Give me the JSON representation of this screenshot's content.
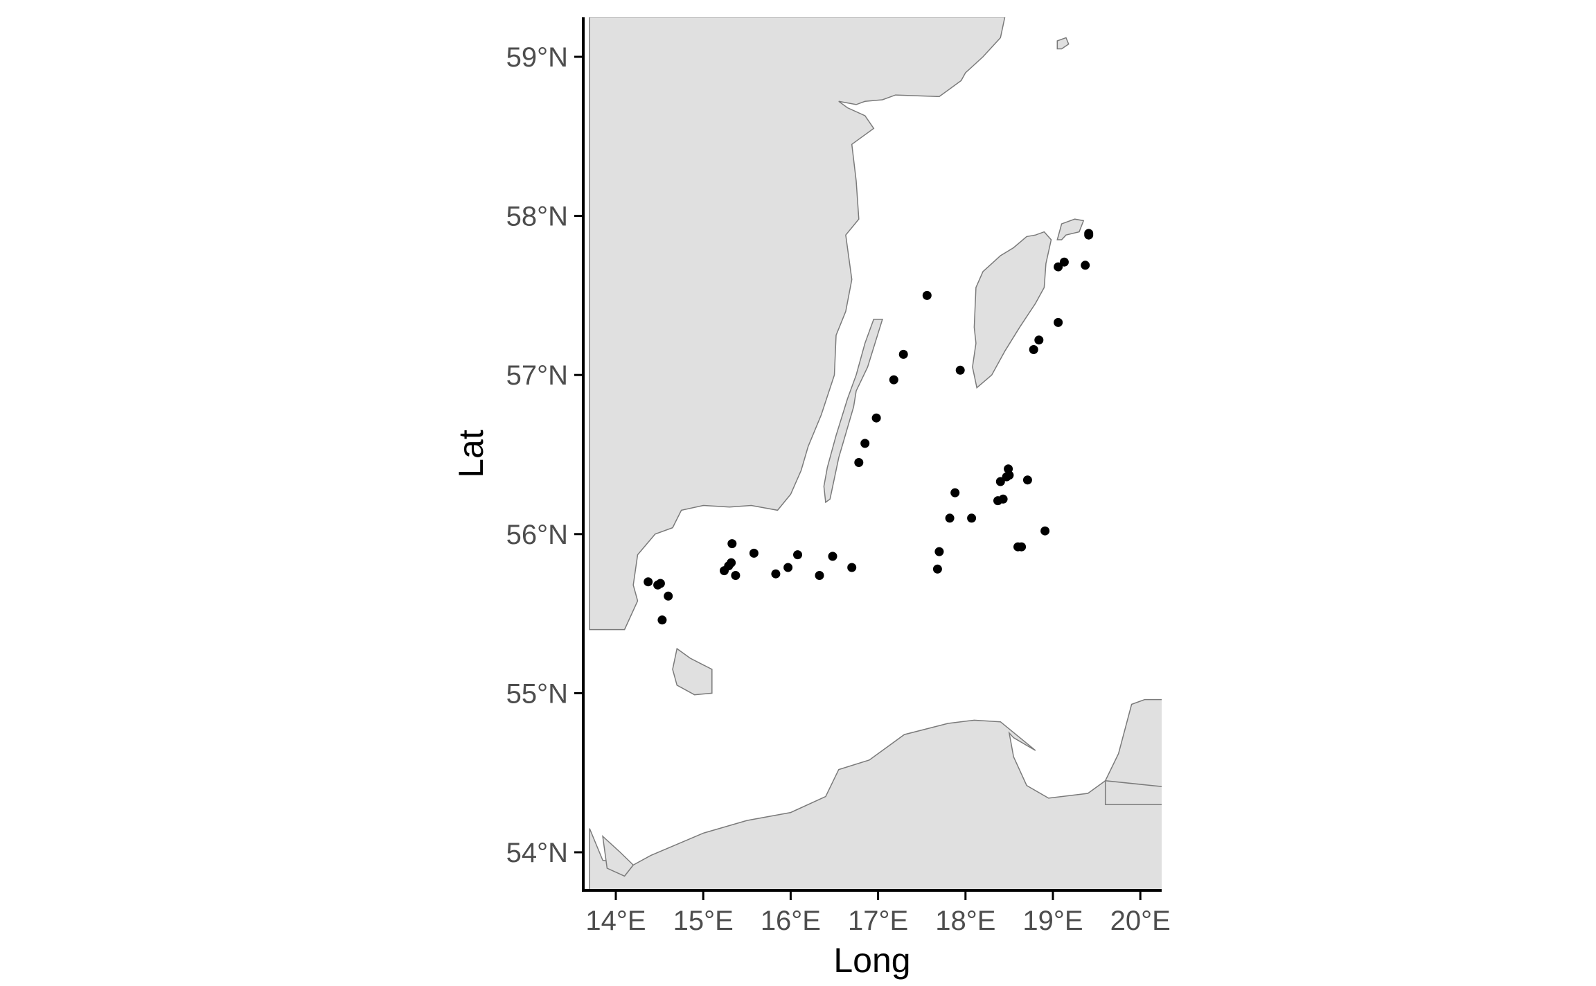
{
  "map": {
    "x_title": "Long",
    "y_title": "Lat",
    "x_ticks": [
      {
        "value": 14,
        "label": "14°E"
      },
      {
        "value": 15,
        "label": "15°E"
      },
      {
        "value": 16,
        "label": "16°E"
      },
      {
        "value": 17,
        "label": "17°E"
      },
      {
        "value": 18,
        "label": "18°E"
      },
      {
        "value": 19,
        "label": "19°E"
      },
      {
        "value": 20,
        "label": "20°E"
      }
    ],
    "y_ticks": [
      {
        "value": 54,
        "label": "54°N"
      },
      {
        "value": 55,
        "label": "55°N"
      },
      {
        "value": 56,
        "label": "56°N"
      },
      {
        "value": 57,
        "label": "57°N"
      },
      {
        "value": 58,
        "label": "58°N"
      },
      {
        "value": 59,
        "label": "59°N"
      }
    ],
    "xlim": [
      13.7,
      20.3
    ],
    "ylim": [
      53.75,
      59.25
    ],
    "colors": {
      "land_fill": "#e0e0e0",
      "land_stroke": "#7a7a7a",
      "points": "#000000",
      "axis": "#000000"
    },
    "points": [
      {
        "lon": 14.37,
        "lat": 55.7
      },
      {
        "lon": 14.48,
        "lat": 55.68
      },
      {
        "lon": 14.51,
        "lat": 55.69
      },
      {
        "lon": 14.6,
        "lat": 55.61
      },
      {
        "lon": 14.53,
        "lat": 55.46
      },
      {
        "lon": 15.24,
        "lat": 55.77
      },
      {
        "lon": 15.29,
        "lat": 55.8
      },
      {
        "lon": 15.32,
        "lat": 55.82
      },
      {
        "lon": 15.33,
        "lat": 55.94
      },
      {
        "lon": 15.37,
        "lat": 55.74
      },
      {
        "lon": 15.58,
        "lat": 55.88
      },
      {
        "lon": 15.83,
        "lat": 55.75
      },
      {
        "lon": 15.97,
        "lat": 55.79
      },
      {
        "lon": 16.08,
        "lat": 55.87
      },
      {
        "lon": 16.33,
        "lat": 55.74
      },
      {
        "lon": 16.48,
        "lat": 55.86
      },
      {
        "lon": 16.7,
        "lat": 55.79
      },
      {
        "lon": 16.78,
        "lat": 56.45
      },
      {
        "lon": 16.85,
        "lat": 56.57
      },
      {
        "lon": 16.98,
        "lat": 56.73
      },
      {
        "lon": 17.18,
        "lat": 56.97
      },
      {
        "lon": 17.29,
        "lat": 57.13
      },
      {
        "lon": 17.56,
        "lat": 57.5
      },
      {
        "lon": 17.68,
        "lat": 55.78
      },
      {
        "lon": 17.7,
        "lat": 55.89
      },
      {
        "lon": 17.82,
        "lat": 56.1
      },
      {
        "lon": 17.88,
        "lat": 56.26
      },
      {
        "lon": 17.94,
        "lat": 57.03
      },
      {
        "lon": 18.07,
        "lat": 56.1
      },
      {
        "lon": 18.37,
        "lat": 56.21
      },
      {
        "lon": 18.4,
        "lat": 56.33
      },
      {
        "lon": 18.43,
        "lat": 56.22
      },
      {
        "lon": 18.47,
        "lat": 56.36
      },
      {
        "lon": 18.49,
        "lat": 56.41
      },
      {
        "lon": 18.5,
        "lat": 56.37
      },
      {
        "lon": 18.6,
        "lat": 55.92
      },
      {
        "lon": 18.64,
        "lat": 55.92
      },
      {
        "lon": 18.71,
        "lat": 56.34
      },
      {
        "lon": 18.78,
        "lat": 57.16
      },
      {
        "lon": 18.84,
        "lat": 57.22
      },
      {
        "lon": 18.91,
        "lat": 56.02
      },
      {
        "lon": 19.06,
        "lat": 57.33
      },
      {
        "lon": 19.06,
        "lat": 57.68
      },
      {
        "lon": 19.13,
        "lat": 57.71
      },
      {
        "lon": 19.37,
        "lat": 57.69
      },
      {
        "lon": 19.41,
        "lat": 57.88
      },
      {
        "lon": 19.41,
        "lat": 57.89
      }
    ],
    "land": [
      {
        "name": "sweden-land",
        "coords": [
          [
            13.7,
            59.25
          ],
          [
            18.45,
            59.25
          ],
          [
            18.4,
            59.12
          ],
          [
            18.2,
            59.0
          ],
          [
            18.0,
            58.9
          ],
          [
            17.95,
            58.85
          ],
          [
            17.7,
            58.75
          ],
          [
            17.2,
            58.76
          ],
          [
            17.05,
            58.73
          ],
          [
            16.85,
            58.72
          ],
          [
            16.75,
            58.7
          ],
          [
            16.55,
            58.72
          ],
          [
            16.65,
            58.68
          ],
          [
            16.85,
            58.63
          ],
          [
            16.95,
            58.55
          ],
          [
            16.7,
            58.45
          ],
          [
            16.75,
            58.22
          ],
          [
            16.78,
            57.98
          ],
          [
            16.63,
            57.88
          ],
          [
            16.7,
            57.6
          ],
          [
            16.63,
            57.4
          ],
          [
            16.52,
            57.25
          ],
          [
            16.5,
            57.0
          ],
          [
            16.35,
            56.75
          ],
          [
            16.2,
            56.55
          ],
          [
            16.12,
            56.4
          ],
          [
            16.0,
            56.25
          ],
          [
            15.85,
            56.15
          ],
          [
            15.55,
            56.18
          ],
          [
            15.3,
            56.17
          ],
          [
            15.0,
            56.18
          ],
          [
            14.75,
            56.15
          ],
          [
            14.65,
            56.04
          ],
          [
            14.45,
            56.0
          ],
          [
            14.25,
            55.87
          ],
          [
            14.2,
            55.68
          ],
          [
            14.25,
            55.58
          ],
          [
            14.1,
            55.4
          ],
          [
            13.85,
            55.4
          ],
          [
            13.7,
            55.4
          ]
        ]
      },
      {
        "name": "oland-island",
        "coords": [
          [
            16.4,
            56.2
          ],
          [
            16.45,
            56.22
          ],
          [
            16.55,
            56.48
          ],
          [
            16.72,
            56.8
          ],
          [
            16.75,
            56.9
          ],
          [
            16.88,
            57.05
          ],
          [
            17.05,
            57.35
          ],
          [
            16.95,
            57.35
          ],
          [
            16.85,
            57.2
          ],
          [
            16.75,
            57.0
          ],
          [
            16.65,
            56.85
          ],
          [
            16.52,
            56.62
          ],
          [
            16.42,
            56.42
          ],
          [
            16.38,
            56.3
          ]
        ]
      },
      {
        "name": "gotland-island",
        "coords": [
          [
            18.13,
            56.92
          ],
          [
            18.3,
            57.0
          ],
          [
            18.45,
            57.15
          ],
          [
            18.62,
            57.3
          ],
          [
            18.8,
            57.45
          ],
          [
            18.9,
            57.55
          ],
          [
            18.92,
            57.7
          ],
          [
            18.98,
            57.85
          ],
          [
            18.9,
            57.9
          ],
          [
            18.8,
            57.88
          ],
          [
            18.7,
            57.87
          ],
          [
            18.55,
            57.8
          ],
          [
            18.4,
            57.75
          ],
          [
            18.2,
            57.65
          ],
          [
            18.12,
            57.55
          ],
          [
            18.1,
            57.3
          ],
          [
            18.12,
            57.2
          ],
          [
            18.08,
            57.05
          ]
        ]
      },
      {
        "name": "faro-island",
        "coords": [
          [
            19.05,
            57.85
          ],
          [
            19.1,
            57.95
          ],
          [
            19.25,
            57.98
          ],
          [
            19.35,
            57.97
          ],
          [
            19.3,
            57.9
          ],
          [
            19.15,
            57.88
          ],
          [
            19.1,
            57.85
          ]
        ]
      },
      {
        "name": "gotska-sandon-island",
        "coords": [
          [
            19.05,
            59.1
          ],
          [
            19.15,
            59.12
          ],
          [
            19.18,
            59.08
          ],
          [
            19.1,
            59.05
          ],
          [
            19.05,
            59.05
          ]
        ]
      },
      {
        "name": "bornholm-island",
        "coords": [
          [
            14.7,
            55.28
          ],
          [
            14.85,
            55.22
          ],
          [
            15.1,
            55.15
          ],
          [
            15.1,
            55.0
          ],
          [
            14.9,
            54.99
          ],
          [
            14.7,
            55.05
          ],
          [
            14.65,
            55.15
          ]
        ]
      },
      {
        "name": "poland-coast",
        "coords": [
          [
            13.7,
            54.15
          ],
          [
            13.85,
            53.95
          ],
          [
            14.2,
            53.92
          ],
          [
            14.4,
            53.98
          ],
          [
            15.0,
            54.12
          ],
          [
            15.5,
            54.2
          ],
          [
            16.0,
            54.25
          ],
          [
            16.4,
            54.35
          ],
          [
            16.55,
            54.52
          ],
          [
            16.9,
            54.58
          ],
          [
            17.3,
            54.74
          ],
          [
            17.8,
            54.81
          ],
          [
            18.1,
            54.83
          ],
          [
            18.4,
            54.82
          ],
          [
            18.8,
            54.64
          ],
          [
            18.55,
            54.72
          ],
          [
            18.5,
            54.75
          ],
          [
            18.55,
            54.6
          ],
          [
            18.7,
            54.42
          ],
          [
            18.95,
            54.34
          ],
          [
            19.4,
            54.37
          ],
          [
            19.6,
            54.45
          ],
          [
            19.75,
            54.62
          ],
          [
            19.9,
            54.93
          ],
          [
            20.05,
            54.96
          ],
          [
            20.3,
            54.96
          ],
          [
            20.3,
            53.75
          ],
          [
            13.7,
            53.75
          ]
        ]
      },
      {
        "name": "usedom-island",
        "coords": [
          [
            13.85,
            54.1
          ],
          [
            14.05,
            54.0
          ],
          [
            14.2,
            53.92
          ],
          [
            14.1,
            53.85
          ],
          [
            13.9,
            53.9
          ]
        ]
      },
      {
        "name": "vistula-lagoon-border",
        "coords": [
          [
            19.6,
            54.45
          ],
          [
            20.3,
            54.41
          ],
          [
            20.3,
            54.3
          ],
          [
            19.6,
            54.3
          ]
        ]
      }
    ]
  }
}
